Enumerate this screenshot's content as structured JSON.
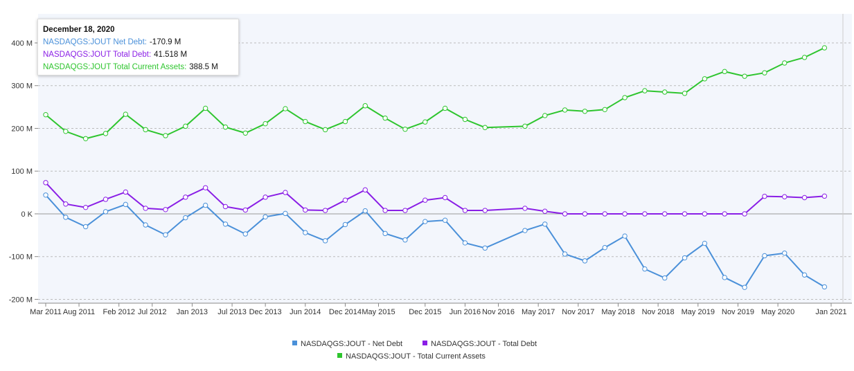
{
  "chart_data": {
    "type": "line",
    "x": [
      "2011-03",
      "2011-06",
      "2011-09",
      "2011-12",
      "2012-03",
      "2012-06",
      "2012-09",
      "2012-12",
      "2013-03",
      "2013-06",
      "2013-09",
      "2013-12",
      "2014-03",
      "2014-06",
      "2014-09",
      "2014-12",
      "2015-03",
      "2015-06",
      "2015-09",
      "2015-12",
      "2016-03",
      "2016-06",
      "2016-09",
      "2017-03",
      "2017-06",
      "2017-09",
      "2017-12",
      "2018-03",
      "2018-06",
      "2018-09",
      "2018-12",
      "2019-03",
      "2019-06",
      "2019-09",
      "2019-12",
      "2020-03",
      "2020-06",
      "2020-09",
      "2020-12"
    ],
    "series": [
      {
        "name": "NASDAQGS:JOUT - Net Debt",
        "color": "#4a90d9",
        "values": [
          44,
          -8,
          -30,
          5,
          22,
          -26,
          -49,
          -9,
          20,
          -24,
          -47,
          -7,
          1,
          -44,
          -63,
          -25,
          7,
          -46,
          -61,
          -18,
          -15,
          -68,
          -80,
          -39,
          -24,
          -94,
          -110,
          -79,
          -52,
          -129,
          -150,
          -103,
          -69,
          -149,
          -172,
          -98,
          -92,
          -143,
          -170.9
        ]
      },
      {
        "name": "NASDAQGS:JOUT - Total Debt",
        "color": "#8a1ee6",
        "values": [
          73,
          23,
          15,
          34,
          51,
          13,
          10,
          39,
          61,
          17,
          9,
          39,
          50,
          9,
          8,
          32,
          56,
          8,
          8,
          32,
          38,
          8,
          8,
          13,
          6,
          0,
          0,
          0,
          0,
          0,
          0,
          0,
          0,
          0,
          0,
          41,
          40,
          38,
          41.518
        ]
      },
      {
        "name": "NASDAQGS:JOUT - Total Current Assets",
        "color": "#2ec52e",
        "values": [
          232,
          193,
          176,
          188,
          233,
          197,
          183,
          205,
          247,
          203,
          189,
          211,
          246,
          216,
          197,
          216,
          253,
          224,
          198,
          215,
          247,
          221,
          202,
          205,
          230,
          243,
          240,
          244,
          272,
          288,
          285,
          282,
          316,
          333,
          322,
          330,
          353,
          366,
          388.5
        ]
      }
    ],
    "ylim": [
      -209,
      468
    ],
    "yticks": [
      {
        "value": -200,
        "label": "-200 M"
      },
      {
        "value": -100,
        "label": "-100 M"
      },
      {
        "value": 0,
        "label": "0 K"
      },
      {
        "value": 100,
        "label": "100 M"
      },
      {
        "value": 200,
        "label": "200 M"
      },
      {
        "value": 300,
        "label": "300 M"
      },
      {
        "value": 400,
        "label": "400 M"
      }
    ],
    "xlim": [
      "2011-03",
      "2021-01"
    ],
    "xticks": [
      {
        "value": "2011-03",
        "label": "Mar 2011"
      },
      {
        "value": "2011-08",
        "label": "Aug 2011"
      },
      {
        "value": "2012-02",
        "label": "Feb 2012"
      },
      {
        "value": "2012-07",
        "label": "Jul 2012"
      },
      {
        "value": "2013-01",
        "label": "Jan 2013"
      },
      {
        "value": "2013-07",
        "label": "Jul 2013"
      },
      {
        "value": "2013-12",
        "label": "Dec 2013"
      },
      {
        "value": "2014-06",
        "label": "Jun 2014"
      },
      {
        "value": "2014-12",
        "label": "Dec 2014"
      },
      {
        "value": "2015-05",
        "label": "May 2015"
      },
      {
        "value": "2015-12",
        "label": "Dec 2015"
      },
      {
        "value": "2016-06",
        "label": "Jun 2016"
      },
      {
        "value": "2016-11",
        "label": "Nov 2016"
      },
      {
        "value": "2017-05",
        "label": "May 2017"
      },
      {
        "value": "2017-11",
        "label": "Nov 2017"
      },
      {
        "value": "2018-05",
        "label": "May 2018"
      },
      {
        "value": "2018-11",
        "label": "Nov 2018"
      },
      {
        "value": "2019-05",
        "label": "May 2019"
      },
      {
        "value": "2019-11",
        "label": "Nov 2019"
      },
      {
        "value": "2020-05",
        "label": "May 2020"
      },
      {
        "value": "2021-01",
        "label": "Jan 2021"
      }
    ],
    "grid": true,
    "legend": "bottom",
    "tooltip": {
      "title": "December 18, 2020",
      "rows": [
        {
          "label": "NASDAQGS:JOUT Net Debt:",
          "value": "-170.9 M"
        },
        {
          "label": "NASDAQGS:JOUT Total Debt:",
          "value": "41.518 M"
        },
        {
          "label": "NASDAQGS:JOUT Total Current Assets:",
          "value": "388.5 M"
        }
      ]
    }
  }
}
